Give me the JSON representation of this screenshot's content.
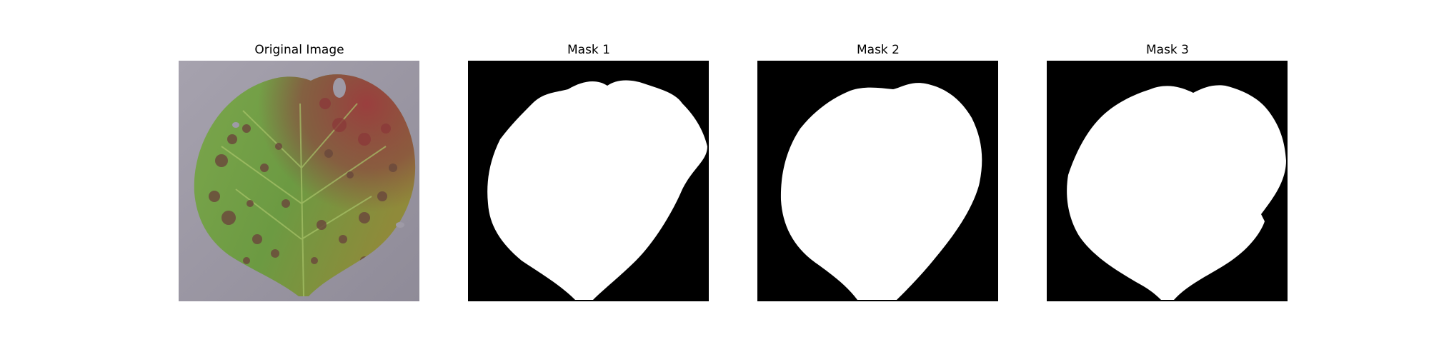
{
  "panels": [
    {
      "title": "Original Image"
    },
    {
      "title": "Mask 1"
    },
    {
      "title": "Mask 2"
    },
    {
      "title": "Mask 3"
    }
  ],
  "colors": {
    "background": "#ffffff",
    "mask_background": "#000000",
    "mask_foreground": "#ffffff",
    "photo_surface": "#9e9aa6",
    "leaf_green": "#6d9a45",
    "leaf_disease_red": "#8c3b3b",
    "leaf_spot_brown": "#6b4a3c"
  }
}
